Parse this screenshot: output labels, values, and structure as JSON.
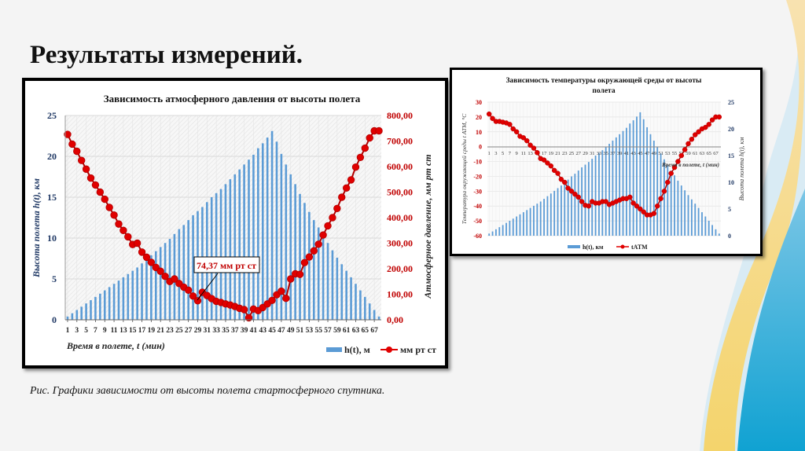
{
  "slide": {
    "title": "Результаты измерений.",
    "caption": "Рис. Графики зависимости от высоты полета стартосферного спутника."
  },
  "colors": {
    "bar": "#5b9bd5",
    "line": "#e00000",
    "line_dark": "#b00000",
    "axis_left_text": "#1f3864",
    "axis_right_text": "#c00000",
    "deco_yellow": "#f6d77a",
    "deco_blue": "#1aa0d0"
  },
  "chart_data": [
    {
      "type": "bar+line",
      "title": "Зависимость атмосферного давления от высоты полета",
      "xlabel": "Время в полете, t (мин)",
      "ylabel": "Высота полета h(t), км",
      "y2label": "Атмосферное давление, мм рт ст",
      "ylim": [
        0,
        25
      ],
      "y2lim": [
        0,
        800
      ],
      "yticks": [
        "0",
        "5",
        "10",
        "15",
        "20",
        "25"
      ],
      "y2ticks": [
        "0,00",
        "100,00",
        "200,00",
        "300,00",
        "400,00",
        "500,00",
        "600,00",
        "700,00",
        "800,00"
      ],
      "xtick_labels": [
        "1",
        "3",
        "5",
        "7",
        "9",
        "11",
        "13",
        "15",
        "17",
        "19",
        "21",
        "23",
        "25",
        "27",
        "29",
        "31",
        "33",
        "35",
        "37",
        "39",
        "41",
        "43",
        "45",
        "47",
        "49",
        "51",
        "53",
        "55",
        "57",
        "59",
        "61",
        "63",
        "65",
        "67"
      ],
      "grid": true,
      "legend_position": "bottom-right",
      "annotation": {
        "text": "74,37 мм рт ст",
        "x": 29,
        "value": 74.37
      },
      "categories": [
        1,
        2,
        3,
        4,
        5,
        6,
        7,
        8,
        9,
        10,
        11,
        12,
        13,
        14,
        15,
        16,
        17,
        18,
        19,
        20,
        21,
        22,
        23,
        24,
        25,
        26,
        27,
        28,
        29,
        30,
        31,
        32,
        33,
        34,
        35,
        36,
        37,
        38,
        39,
        40,
        41,
        42,
        43,
        44,
        45,
        46,
        47,
        48,
        49,
        50,
        51,
        52,
        53,
        54,
        55,
        56,
        57,
        58,
        59,
        60,
        61,
        62,
        63,
        64,
        65,
        66,
        67,
        68
      ],
      "series": [
        {
          "name": "h(t), м",
          "kind": "bar",
          "axis": "left",
          "values": [
            0.4,
            0.8,
            1.2,
            1.6,
            2.0,
            2.4,
            2.8,
            3.2,
            3.6,
            4.0,
            4.4,
            4.8,
            5.2,
            5.6,
            6.0,
            6.4,
            6.9,
            7.4,
            7.9,
            8.4,
            8.9,
            9.4,
            9.9,
            10.5,
            11.1,
            11.6,
            12.2,
            12.8,
            13.3,
            13.8,
            14.4,
            15.0,
            15.5,
            16.0,
            16.6,
            17.2,
            17.8,
            18.4,
            19.0,
            19.6,
            20.2,
            21.0,
            21.6,
            22.3,
            23.1,
            21.8,
            20.3,
            19.0,
            17.8,
            16.6,
            15.4,
            14.3,
            13.2,
            12.2,
            11.3,
            10.3,
            9.4,
            8.5,
            7.6,
            6.8,
            6.0,
            5.2,
            4.4,
            3.6,
            2.8,
            2.0,
            1.2,
            0.4
          ]
        },
        {
          "name": "мм рт ст",
          "kind": "line",
          "axis": "right",
          "values": [
            726,
            688,
            660,
            624,
            590,
            555,
            528,
            500,
            472,
            440,
            410,
            375,
            350,
            325,
            295,
            300,
            265,
            245,
            225,
            205,
            190,
            170,
            150,
            160,
            142,
            128,
            116,
            93,
            74.37,
            108,
            95,
            83,
            72,
            68,
            62,
            58,
            52,
            45,
            40,
            8,
            42,
            36,
            48,
            62,
            76,
            98,
            112,
            84,
            160,
            180,
            178,
            224,
            246,
            270,
            296,
            332,
            368,
            400,
            436,
            480,
            516,
            548,
            598,
            636,
            672,
            712,
            740,
            740
          ]
        }
      ]
    },
    {
      "type": "bar+line",
      "title": "Зависимость температуры окружающей среды от высоты полета",
      "xlabel": "Время в полете, t (мин)",
      "ylabel": "Температура окружающей среды t АТМ, °С",
      "y2label": "Высота полета h(t), км",
      "ylim": [
        -60,
        30
      ],
      "y2lim": [
        0,
        25
      ],
      "yticks": [
        "-60",
        "-50",
        "-40",
        "-30",
        "-20",
        "-10",
        "0",
        "10",
        "20",
        "30"
      ],
      "y2ticks": [
        "0",
        "5",
        "10",
        "15",
        "20",
        "25"
      ],
      "xtick_labels": [
        "1",
        "3",
        "5",
        "7",
        "9",
        "11",
        "13",
        "15",
        "17",
        "19",
        "21",
        "23",
        "25",
        "27",
        "29",
        "31",
        "33",
        "35",
        "37",
        "39",
        "41",
        "43",
        "45",
        "47",
        "49",
        "51",
        "53",
        "55",
        "57",
        "59",
        "61",
        "63",
        "65",
        "67"
      ],
      "grid": true,
      "legend_position": "bottom-center",
      "categories": [
        1,
        2,
        3,
        4,
        5,
        6,
        7,
        8,
        9,
        10,
        11,
        12,
        13,
        14,
        15,
        16,
        17,
        18,
        19,
        20,
        21,
        22,
        23,
        24,
        25,
        26,
        27,
        28,
        29,
        30,
        31,
        32,
        33,
        34,
        35,
        36,
        37,
        38,
        39,
        40,
        41,
        42,
        43,
        44,
        45,
        46,
        47,
        48,
        49,
        50,
        51,
        52,
        53,
        54,
        55,
        56,
        57,
        58,
        59,
        60,
        61,
        62,
        63,
        64,
        65,
        66,
        67,
        68
      ],
      "series": [
        {
          "name": "h(t), км",
          "kind": "bar",
          "axis": "right",
          "values": [
            0.4,
            0.8,
            1.2,
            1.6,
            2.0,
            2.4,
            2.8,
            3.2,
            3.6,
            4.0,
            4.4,
            4.8,
            5.2,
            5.6,
            6.0,
            6.4,
            6.9,
            7.4,
            7.9,
            8.4,
            8.9,
            9.4,
            9.9,
            10.5,
            11.1,
            11.6,
            12.2,
            12.8,
            13.3,
            13.8,
            14.4,
            15.0,
            15.5,
            16.0,
            16.6,
            17.2,
            17.8,
            18.4,
            19.0,
            19.6,
            20.2,
            21.0,
            21.6,
            22.3,
            23.1,
            21.8,
            20.3,
            19.0,
            17.8,
            16.6,
            15.4,
            14.3,
            13.2,
            12.2,
            11.3,
            10.3,
            9.4,
            8.5,
            7.6,
            6.8,
            6.0,
            5.2,
            4.4,
            3.6,
            2.8,
            2.0,
            1.2,
            0.4
          ]
        },
        {
          "name": "tATM",
          "kind": "line",
          "axis": "left",
          "values": [
            22,
            19,
            17,
            17,
            16.5,
            16,
            15,
            12,
            10,
            7,
            6,
            4,
            1,
            -1,
            -4,
            -8,
            -9,
            -11,
            -13,
            -16,
            -18,
            -22,
            -24,
            -28,
            -30,
            -32,
            -34,
            -37,
            -39.5,
            -40,
            -37,
            -38,
            -38,
            -37,
            -37,
            -39,
            -38,
            -37,
            -36,
            -35,
            -35,
            -34,
            -38,
            -40,
            -42,
            -44,
            -46,
            -46,
            -45,
            -40,
            -35,
            -30,
            -24,
            -18,
            -14,
            -10,
            -6,
            -2,
            2,
            5,
            8,
            10,
            12,
            13,
            15,
            18,
            20,
            20
          ]
        }
      ]
    }
  ]
}
